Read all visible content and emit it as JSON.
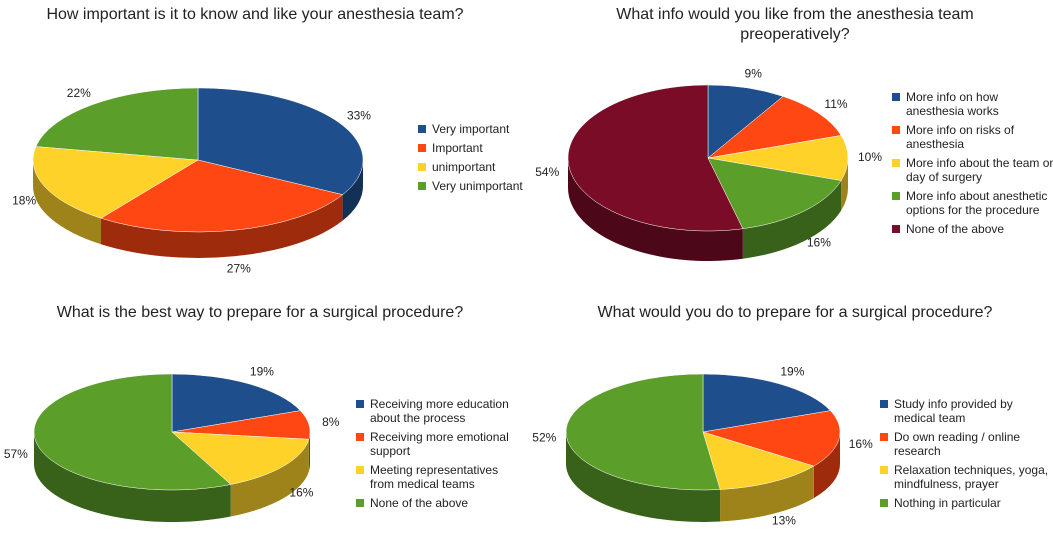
{
  "chart_data": [
    {
      "type": "pie",
      "title": "How important is it to know and like your anesthesia team?",
      "categories": [
        "Very important",
        "Important",
        "unimportant",
        "Very unimportant"
      ],
      "values": [
        33,
        27,
        18,
        22
      ],
      "value_labels": [
        "33%",
        "27%",
        "18%",
        "22%"
      ],
      "colors": [
        "#1f4e8c",
        "#ff4713",
        "#ffd22a",
        "#5b9e2a"
      ]
    },
    {
      "type": "pie",
      "title": "What info would you like from the anesthesia team preoperatively?",
      "categories": [
        "More info on how anesthesia works",
        "More info on risks of anesthesia",
        "More info about the team on day of surgery",
        "More info about anesthetic options for the procedure",
        "None of the above"
      ],
      "values": [
        9,
        11,
        10,
        16,
        54
      ],
      "value_labels": [
        "9%",
        "11%",
        "10%",
        "16%",
        "54%"
      ],
      "colors": [
        "#1f4e8c",
        "#ff4713",
        "#ffd22a",
        "#5b9e2a",
        "#7b0c27"
      ]
    },
    {
      "type": "pie",
      "title": "What is the best way to prepare for a surgical procedure?",
      "categories": [
        "Receiving more education about the process",
        "Receiving more emotional support",
        "Meeting representatives from medical teams",
        "None of the above"
      ],
      "values": [
        19,
        8,
        16,
        57
      ],
      "value_labels": [
        "19%",
        "8%",
        "16%",
        "57%"
      ],
      "colors": [
        "#1f4e8c",
        "#ff4713",
        "#ffd22a",
        "#5b9e2a"
      ]
    },
    {
      "type": "pie",
      "title": "What would you do to prepare for a surgical procedure?",
      "categories": [
        "Study info provided by medical team",
        "Do own reading / online research",
        "Relaxation techniques, yoga, mindfulness, prayer",
        "Nothing in particular"
      ],
      "values": [
        19,
        16,
        13,
        52
      ],
      "value_labels": [
        "19%",
        "16%",
        "13%",
        "52%"
      ],
      "colors": [
        "#1f4e8c",
        "#ff4713",
        "#ffd22a",
        "#5b9e2a"
      ]
    }
  ]
}
